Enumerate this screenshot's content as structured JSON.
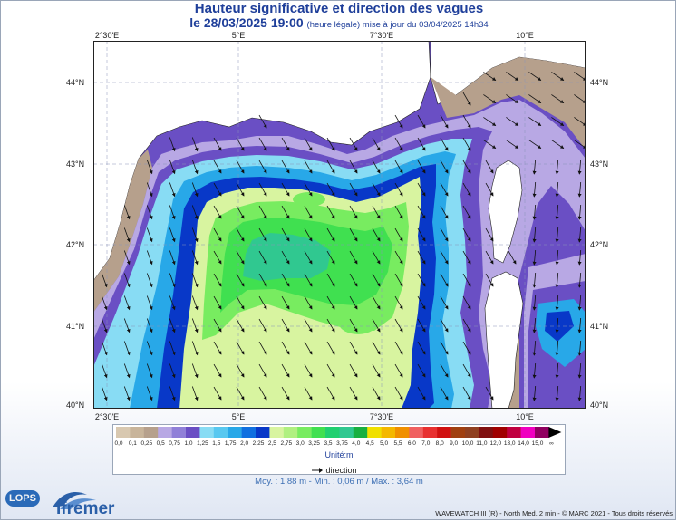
{
  "title": "Hauteur significative et direction des vagues",
  "subtitle": {
    "date": "le 28/03/2025 19:00",
    "note": "(heure légale) mise à jour du 03/04/2025 14h34"
  },
  "map": {
    "lon_labels": [
      "2°30'E",
      "5°E",
      "7°30'E",
      "10°E"
    ],
    "lat_labels": [
      "44°N",
      "43°N",
      "42°N",
      "41°N",
      "40°N"
    ],
    "lon_range": [
      2.0,
      11.0
    ],
    "lat_range": [
      39.95,
      44.45
    ],
    "grid": true
  },
  "colorbar": {
    "labels": [
      "0,0",
      "0,1",
      "0,25",
      "0,5",
      "0,75",
      "1,0",
      "1,25",
      "1,5",
      "1,75",
      "2,0",
      "2,25",
      "2,5",
      "2,75",
      "3,0",
      "3,25",
      "3,5",
      "3,75",
      "4,0",
      "4,5",
      "5,0",
      "5,5",
      "6,0",
      "7,0",
      "8,0",
      "9,0",
      "10,0",
      "11,0",
      "12,0",
      "13,0",
      "14,0",
      "15,0",
      "∞"
    ],
    "colors": [
      "#d8c8b0",
      "#c8b49a",
      "#b6a08c",
      "#b8a8e4",
      "#9080d8",
      "#6a4fc4",
      "#88dcf4",
      "#58c8f0",
      "#28a8e8",
      "#1070e0",
      "#0838c8",
      "#d8f4a0",
      "#b0f080",
      "#78ec60",
      "#40e050",
      "#20d070",
      "#30c890",
      "#18b040",
      "#f0e000",
      "#f4b800",
      "#f09000",
      "#f06060",
      "#e83030",
      "#d01010",
      "#a04010",
      "#904020",
      "#801010",
      "#a00000",
      "#c00040",
      "#f000c0",
      "#900060"
    ],
    "unit": "Unité:m"
  },
  "direction_label": "direction",
  "stats": "Moy. : 1,88 m  -  Min. : 0,06 m / Max. : 3,64 m",
  "credit": "WAVEWATCH III (R) - North Med. 2 min - © MARC 2021 - Tous droits réservés",
  "logos": {
    "lops": "LOPS",
    "ifremer": "Ifremer"
  }
}
